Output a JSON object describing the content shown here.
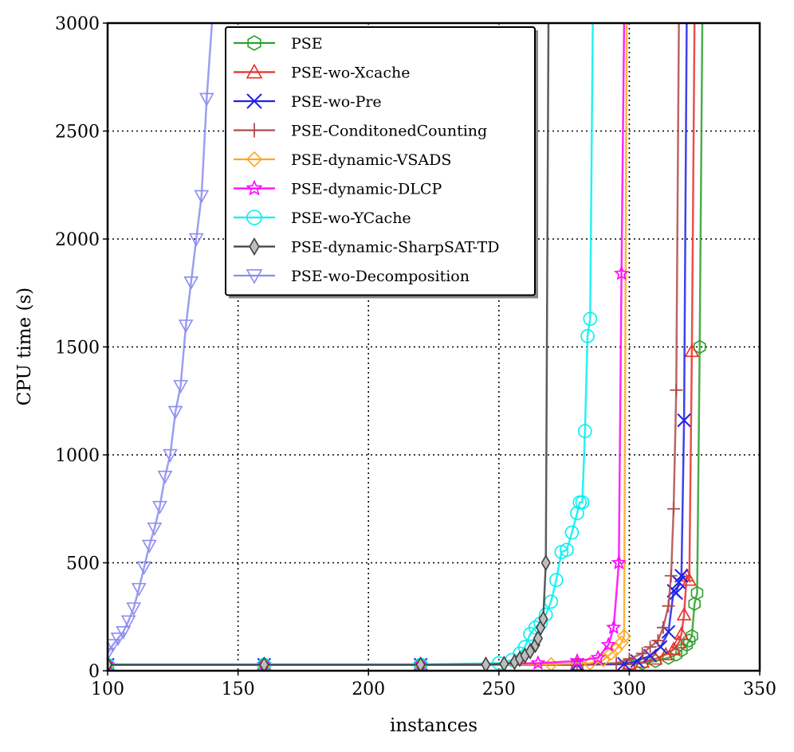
{
  "chart_data": {
    "type": "line",
    "title": "",
    "xlabel": "instances",
    "ylabel": "CPU time (s)",
    "xlim": [
      100,
      350
    ],
    "ylim": [
      0,
      3000
    ],
    "x_ticks": [
      "100",
      "150",
      "200",
      "250",
      "300",
      "350"
    ],
    "y_ticks": [
      "0",
      "500",
      "1000",
      "1500",
      "2000",
      "2500",
      "3000"
    ],
    "grid": true,
    "legend_position": "upper-center",
    "series": [
      {
        "name": "PSE",
        "color": "#2ca02c",
        "marker": "hexagon",
        "x": [
          100,
          160,
          220,
          280,
          300,
          305,
          310,
          315,
          318,
          320,
          322,
          323,
          324,
          325,
          326,
          327,
          328
        ],
        "y": [
          28,
          28,
          28,
          28,
          30,
          35,
          45,
          60,
          75,
          95,
          120,
          140,
          160,
          310,
          360,
          1500,
          3000
        ]
      },
      {
        "name": "PSE-wo-Xcache",
        "color": "#e8302b",
        "marker": "triangle-up",
        "x": [
          100,
          160,
          220,
          280,
          300,
          305,
          310,
          314,
          317,
          319,
          320,
          321,
          322,
          323,
          324,
          325
        ],
        "y": [
          28,
          28,
          28,
          28,
          32,
          40,
          55,
          75,
          100,
          130,
          170,
          260,
          440,
          420,
          1480,
          3000
        ]
      },
      {
        "name": "PSE-wo-Pre",
        "color": "#2020e8",
        "marker": "x",
        "x": [
          100,
          160,
          220,
          280,
          298,
          303,
          308,
          312,
          315,
          317,
          318,
          319,
          320,
          321,
          322
        ],
        "y": [
          28,
          28,
          28,
          28,
          32,
          45,
          70,
          110,
          180,
          370,
          360,
          410,
          440,
          1160,
          3000
        ]
      },
      {
        "name": "PSE-ConditonedCounting",
        "color": "#b04a4a",
        "marker": "plus",
        "x": [
          100,
          160,
          220,
          280,
          295,
          300,
          305,
          308,
          311,
          313,
          315,
          316,
          317,
          318,
          319
        ],
        "y": [
          28,
          28,
          28,
          28,
          35,
          55,
          80,
          110,
          140,
          200,
          300,
          440,
          750,
          1300,
          3000
        ]
      },
      {
        "name": "PSE-dynamic-VSADS",
        "color": "#ffa820",
        "marker": "diamond",
        "x": [
          100,
          160,
          220,
          270,
          285,
          290,
          293,
          295,
          297,
          298,
          299
        ],
        "y": [
          28,
          28,
          28,
          30,
          35,
          50,
          80,
          100,
          130,
          160,
          3000
        ]
      },
      {
        "name": "PSE-dynamic-DLCP",
        "color": "#ff00ff",
        "marker": "star",
        "x": [
          100,
          160,
          220,
          265,
          280,
          288,
          292,
          294,
          296,
          297,
          298
        ],
        "y": [
          28,
          28,
          28,
          35,
          45,
          60,
          120,
          200,
          500,
          1840,
          3000
        ]
      },
      {
        "name": "PSE-wo-YCache",
        "color": "#00f0f0",
        "marker": "circle",
        "x": [
          100,
          160,
          220,
          250,
          255,
          258,
          260,
          262,
          264,
          266,
          268,
          270,
          272,
          274,
          276,
          278,
          280,
          281,
          282,
          283,
          284,
          285,
          286
        ],
        "y": [
          28,
          28,
          28,
          35,
          50,
          80,
          110,
          170,
          200,
          220,
          260,
          320,
          420,
          550,
          560,
          640,
          730,
          780,
          780,
          1110,
          1550,
          1630,
          3000
        ]
      },
      {
        "name": "PSE-dynamic-SharpSAT-TD",
        "color": "#404040",
        "marker": "thin-diamond",
        "x": [
          100,
          160,
          220,
          245,
          252,
          256,
          258,
          260,
          262,
          264,
          265,
          266,
          267,
          268,
          269
        ],
        "y": [
          28,
          28,
          28,
          28,
          32,
          40,
          55,
          70,
          90,
          120,
          150,
          200,
          240,
          500,
          3000
        ]
      },
      {
        "name": "PSE-wo-Decomposition",
        "color": "#8c8cf0",
        "marker": "triangle-down",
        "x": [
          100,
          102,
          104,
          106,
          108,
          110,
          112,
          114,
          116,
          118,
          120,
          122,
          124,
          126,
          128,
          130,
          132,
          134,
          136,
          138,
          140
        ],
        "y": [
          80,
          120,
          150,
          180,
          230,
          290,
          380,
          480,
          580,
          660,
          760,
          900,
          1000,
          1200,
          1320,
          1600,
          1800,
          2000,
          2200,
          2650,
          3000
        ]
      }
    ]
  }
}
